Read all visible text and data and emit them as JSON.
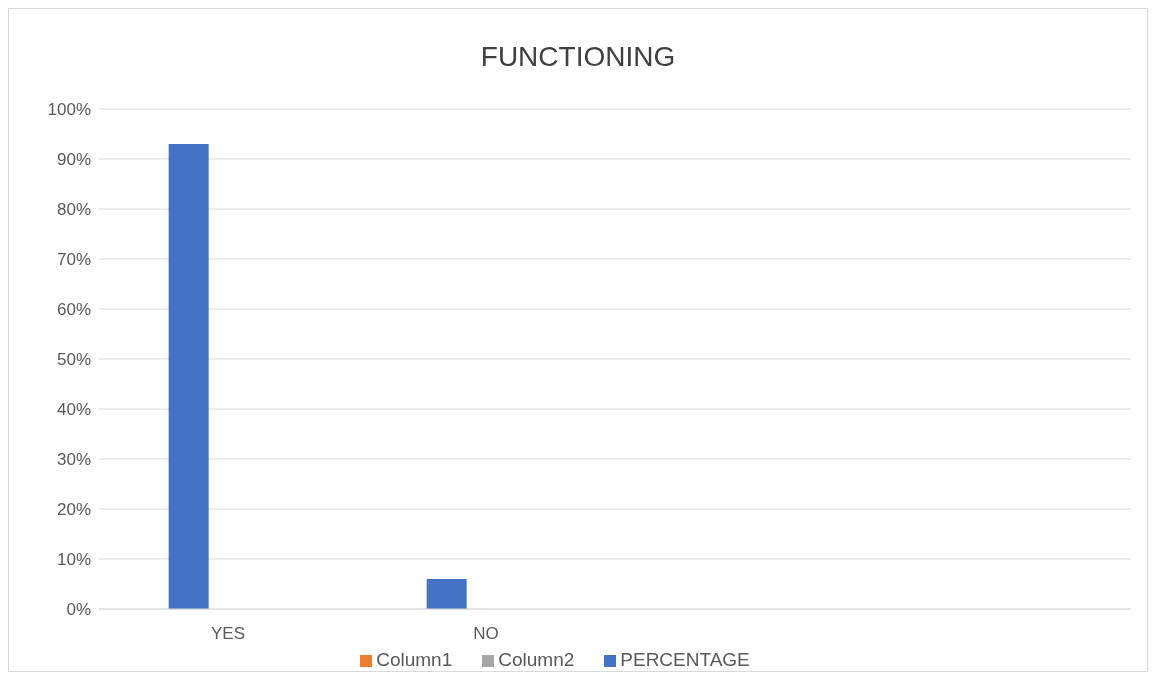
{
  "chart_data": {
    "type": "bar",
    "title": "FUNCTIONING",
    "categories": [
      "YES",
      "NO",
      null,
      null
    ],
    "series": [
      {
        "name": "PERCENTAGE",
        "color": "#4472c4",
        "values": [
          93,
          6,
          null,
          null
        ]
      },
      {
        "name": "Column1",
        "color": "#ed7d31",
        "values": [
          null,
          null,
          null,
          null
        ]
      },
      {
        "name": "Column2",
        "color": "#a5a5a5",
        "values": [
          null,
          null,
          null,
          null
        ]
      }
    ],
    "ylim": [
      0,
      100
    ],
    "yticks": [
      {
        "value": 0,
        "label": "0%"
      },
      {
        "value": 10,
        "label": "10%"
      },
      {
        "value": 20,
        "label": "20%"
      },
      {
        "value": 30,
        "label": "30%"
      },
      {
        "value": 40,
        "label": "40%"
      },
      {
        "value": 50,
        "label": "50%"
      },
      {
        "value": 60,
        "label": "60%"
      },
      {
        "value": 70,
        "label": "70%"
      },
      {
        "value": 80,
        "label": "80%"
      },
      {
        "value": 90,
        "label": "90%"
      },
      {
        "value": 100,
        "label": "100%"
      }
    ],
    "grid": "y",
    "legend": "bottom"
  }
}
